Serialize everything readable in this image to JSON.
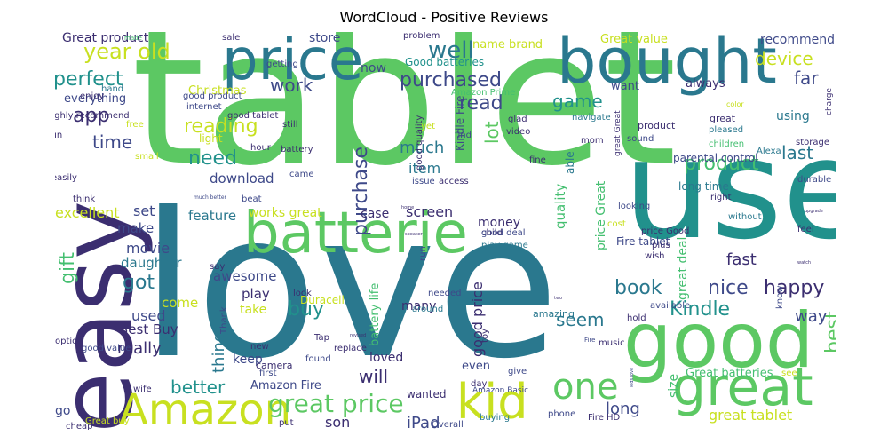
{
  "title": "WordCloud - Positive Reviews",
  "colors": {
    "teal": "#2a788e",
    "green": "#5cc863",
    "lime": "#c8e020",
    "purple": "#3b2e70",
    "blue": "#3e4989",
    "cyan": "#21918c",
    "emerald": "#44bf70",
    "yellow": "#fde725"
  },
  "words": [
    "tablet",
    "love",
    "easy",
    "use",
    "bought",
    "price",
    "batterie",
    "good",
    "great",
    "kid",
    "Amazon",
    "one",
    "great price",
    "Kindle",
    "product",
    "book",
    "nice",
    "happy",
    "year old",
    "perfect",
    "app",
    "work",
    "well",
    "purchased",
    "reading",
    "need",
    "time",
    "purchase",
    "read",
    "game",
    "device",
    "far",
    "last",
    "lot",
    "much",
    "item",
    "got",
    "buy",
    "seem",
    "better",
    "will",
    "screen",
    "best",
    "really",
    "thing",
    "used",
    "gift",
    "set",
    "excellent",
    "works great",
    "download",
    "feature",
    "movie",
    "daughter",
    "make",
    "come",
    "awesome",
    "play",
    "take",
    "keep",
    "Best Buy",
    "many",
    "loved",
    "battery life",
    "Duracell",
    "good price",
    "money",
    "quality",
    "great deal",
    "fast",
    "way",
    "long",
    "iPad",
    "son",
    "Amazon Fire",
    "Great batteries",
    "great tablet",
    "Great product",
    "store",
    "now",
    "name brand",
    "Great value",
    "recommend",
    "Good batteries",
    "want",
    "always",
    "everything",
    "Christmas",
    "light",
    "using",
    "Fire tablet",
    "price Great",
    "able",
    "parental control",
    "long time",
    "case",
    "size",
    "even",
    "wanted",
    "go",
    "Kindle Fire",
    "Amazon Prime",
    "product",
    "great",
    "pleased",
    "children",
    "storage",
    "durable",
    "right",
    "looking",
    "without",
    "feel",
    "cost",
    "price Good",
    "plus",
    "wish",
    "child",
    "play game",
    "good deal",
    "run",
    "needed",
    "around",
    "amazing",
    "music",
    "available",
    "hold",
    "know",
    "see",
    "first",
    "camera",
    "new",
    "Tap",
    "replace",
    "found",
    "day",
    "give",
    "toy",
    "phone",
    "Fire HD",
    "buying",
    "Overall",
    "put",
    "Great buy",
    "wife",
    "cheap",
    "good value",
    "option",
    "Thank",
    "say",
    "enjoy",
    "hand",
    "good product",
    "internet",
    "getting",
    "sale",
    "problem",
    "made",
    "highly recommend",
    "free",
    "fun",
    "small",
    "easily",
    "think",
    "good tablet",
    "still",
    "battery",
    "hour",
    "came",
    "beat",
    "much better",
    "issue",
    "access",
    "video",
    "fine",
    "find",
    "yet",
    "glad",
    "navigate",
    "mom",
    "good quality",
    "sound",
    "color",
    "charge",
    "Alexa",
    "Amazon Basic",
    "home",
    "speaker",
    "Fire",
    "great Great",
    "upgrade",
    "kids love",
    "look",
    "two",
    "watch",
    "revised"
  ]
}
